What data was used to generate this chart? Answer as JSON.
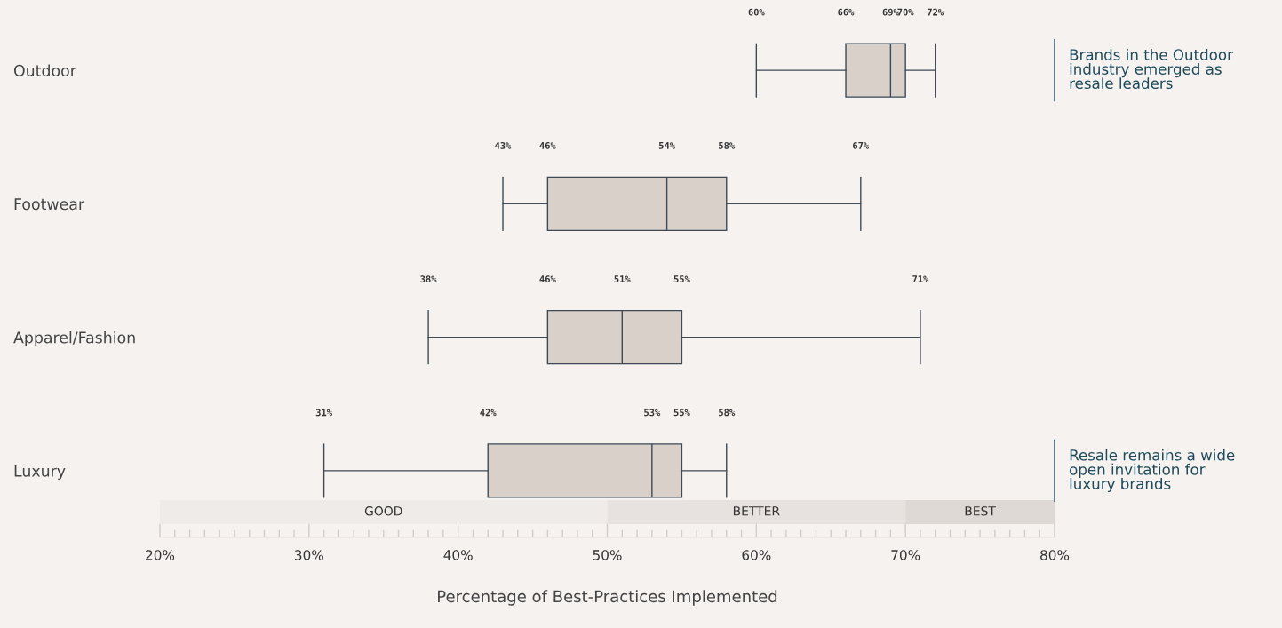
{
  "chart_data": {
    "type": "box",
    "orientation": "horizontal",
    "xlabel": "Percentage of Best-Practices Implemented",
    "categories": [
      "Outdoor",
      "Footwear",
      "Apparel/Fashion",
      "Luxury"
    ],
    "boxes": [
      {
        "low": 60,
        "q1": 66,
        "median": 69,
        "q3": 70,
        "high": 72
      },
      {
        "low": 43,
        "q1": 46,
        "median": 54,
        "q3": 58,
        "high": 67
      },
      {
        "low": 38,
        "q1": 46,
        "median": 51,
        "q3": 55,
        "high": 71
      },
      {
        "low": 31,
        "q1": 42,
        "median": 53,
        "q3": 55,
        "high": 58
      }
    ],
    "color": "#d9d0ca",
    "value_labels": [
      [
        "60%",
        "66%",
        "69%",
        "70%",
        "72%"
      ],
      [
        "43%",
        "46%",
        "54%",
        "58%",
        "67%"
      ],
      [
        "38%",
        "46%",
        "51%",
        "55%",
        "71%"
      ],
      [
        "31%",
        "42%",
        "53%",
        "55%",
        "58%"
      ]
    ],
    "xlim": [
      20,
      80
    ],
    "xticks": [
      {
        "value": 20,
        "label": "20%"
      },
      {
        "value": 21,
        "label": null
      },
      {
        "value": 22,
        "label": null
      },
      {
        "value": 23,
        "label": null
      },
      {
        "value": 24,
        "label": null
      },
      {
        "value": 25,
        "label": null
      },
      {
        "value": 26,
        "label": null
      },
      {
        "value": 27,
        "label": null
      },
      {
        "value": 28,
        "label": null
      },
      {
        "value": 29,
        "label": null
      },
      {
        "value": 30,
        "label": "30%"
      },
      {
        "value": 31,
        "label": null
      },
      {
        "value": 32,
        "label": null
      },
      {
        "value": 33,
        "label": null
      },
      {
        "value": 34,
        "label": null
      },
      {
        "value": 35,
        "label": null
      },
      {
        "value": 36,
        "label": null
      },
      {
        "value": 37,
        "label": null
      },
      {
        "value": 38,
        "label": null
      },
      {
        "value": 39,
        "label": null
      },
      {
        "value": 40,
        "label": "40%"
      },
      {
        "value": 41,
        "label": null
      },
      {
        "value": 42,
        "label": null
      },
      {
        "value": 43,
        "label": null
      },
      {
        "value": 44,
        "label": null
      },
      {
        "value": 45,
        "label": null
      },
      {
        "value": 46,
        "label": null
      },
      {
        "value": 47,
        "label": null
      },
      {
        "value": 48,
        "label": null
      },
      {
        "value": 49,
        "label": null
      },
      {
        "value": 50,
        "label": "50%"
      },
      {
        "value": 51,
        "label": null
      },
      {
        "value": 52,
        "label": null
      },
      {
        "value": 53,
        "label": null
      },
      {
        "value": 54,
        "label": null
      },
      {
        "value": 55,
        "label": null
      },
      {
        "value": 56,
        "label": null
      },
      {
        "value": 57,
        "label": null
      },
      {
        "value": 58,
        "label": null
      },
      {
        "value": 59,
        "label": null
      },
      {
        "value": 60,
        "label": "60%"
      },
      {
        "value": 61,
        "label": null
      },
      {
        "value": 62,
        "label": null
      },
      {
        "value": 63,
        "label": null
      },
      {
        "value": 64,
        "label": null
      },
      {
        "value": 65,
        "label": null
      },
      {
        "value": 66,
        "label": null
      },
      {
        "value": 67,
        "label": null
      },
      {
        "value": 68,
        "label": null
      },
      {
        "value": 69,
        "label": null
      },
      {
        "value": 70,
        "label": "70%"
      },
      {
        "value": 71,
        "label": null
      },
      {
        "value": 72,
        "label": null
      },
      {
        "value": 73,
        "label": null
      },
      {
        "value": 74,
        "label": null
      },
      {
        "value": 75,
        "label": null
      },
      {
        "value": 76,
        "label": null
      },
      {
        "value": 77,
        "label": null
      },
      {
        "value": 78,
        "label": null
      },
      {
        "value": 79,
        "label": null
      },
      {
        "value": 80,
        "label": "80%"
      }
    ],
    "bands": [
      {
        "axis": "x",
        "from": 20,
        "to": 50,
        "label": "GOOD",
        "color": "#efebe9"
      },
      {
        "axis": "x",
        "from": 50,
        "to": 70,
        "label": "BETTER",
        "color": "#e7e2df"
      },
      {
        "axis": "x",
        "from": 70,
        "to": 80,
        "label": "BEST",
        "color": "#dfd9d5"
      }
    ],
    "annotations": [
      "Brands in the Outdoor\nindustry emerged as\nresale leaders",
      "Resale remains a wide\nopen invitation for\nluxury brands"
    ],
    "grid": false,
    "legend": false
  }
}
